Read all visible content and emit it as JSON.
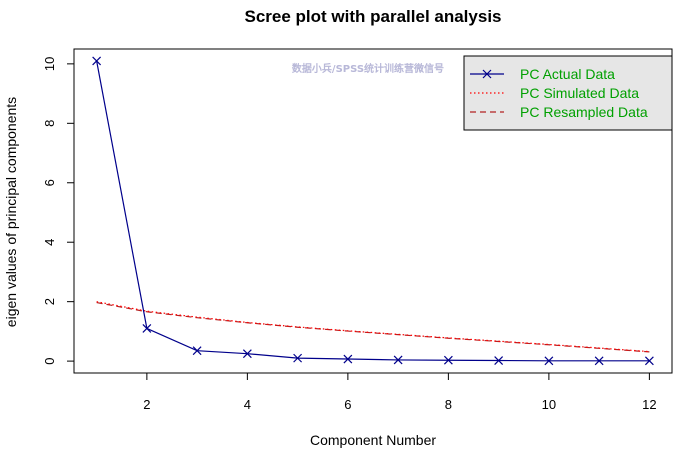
{
  "chart_data": {
    "type": "line",
    "title": "Scree plot with parallel analysis",
    "xlabel": "Component Number",
    "ylabel": "eigen values of principal components",
    "x": [
      1,
      2,
      3,
      4,
      5,
      6,
      7,
      8,
      9,
      10,
      11,
      12
    ],
    "xlim": [
      0.55,
      12.45
    ],
    "ylim": [
      -0.4,
      10.5
    ],
    "xticks": [
      2,
      4,
      6,
      8,
      10,
      12
    ],
    "yticks": [
      0,
      2,
      4,
      6,
      8,
      10
    ],
    "grid": false,
    "legend_position": "top-right",
    "series": [
      {
        "name": "PC  Actual Data",
        "color": "#00008b",
        "style": "solid",
        "marker": "x",
        "values": [
          10.1,
          1.1,
          0.35,
          0.25,
          0.1,
          0.07,
          0.04,
          0.03,
          0.02,
          0.01,
          0.01,
          0.01
        ]
      },
      {
        "name": "PC  Simulated Data",
        "color": "#ff0000",
        "style": "dotted",
        "marker": "",
        "values": [
          2.0,
          1.68,
          1.48,
          1.3,
          1.15,
          1.02,
          0.9,
          0.78,
          0.67,
          0.56,
          0.44,
          0.32
        ]
      },
      {
        "name": "PC  Resampled Data",
        "color": "#b22222",
        "style": "dashed",
        "marker": "",
        "values": [
          1.97,
          1.66,
          1.46,
          1.29,
          1.14,
          1.01,
          0.89,
          0.77,
          0.66,
          0.55,
          0.43,
          0.31
        ]
      }
    ],
    "legend_text_color": "#00a000",
    "watermark": "数据小兵/SPSS统计训练营微信号"
  }
}
